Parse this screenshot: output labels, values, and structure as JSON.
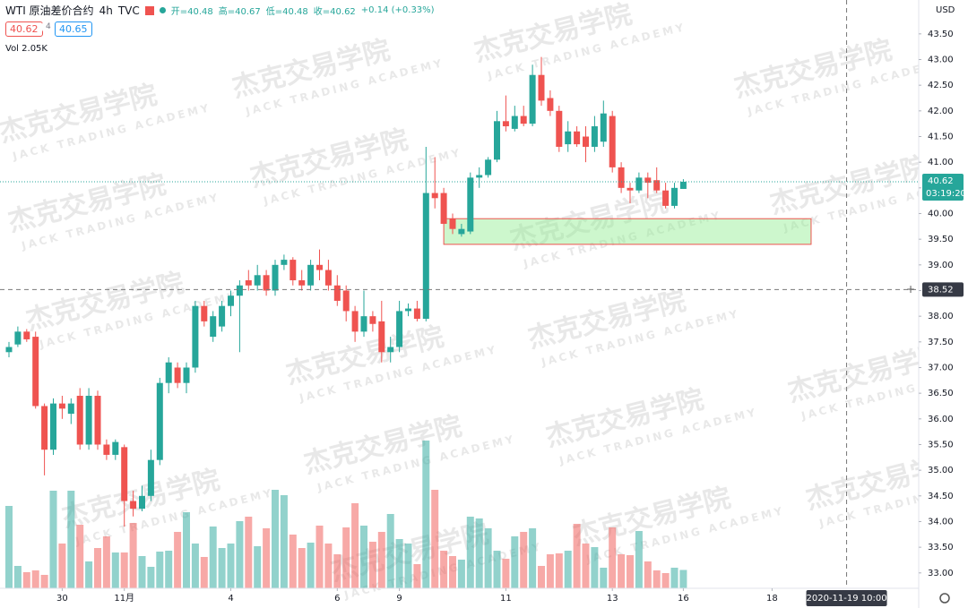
{
  "header": {
    "symbol": "WTI 原油差价合约",
    "interval": "4h",
    "source": "TVC",
    "ohlc": [
      "开=40.48",
      "高=40.67",
      "低=40.48",
      "收=40.62",
      "+0.14 (+0.33%)"
    ],
    "sell": "40.62",
    "spread": "4",
    "buy": "40.65",
    "vol_title": "Vol",
    "vol_value": "2.05K"
  },
  "watermark": {
    "cn": "杰克交易学院",
    "en": "JACK TRADING ACADEMY"
  },
  "chart_data": {
    "type": "candlestick",
    "currency": "USD",
    "open": [
      37.3,
      37.45,
      37.7,
      37.6,
      36.25,
      35.4,
      36.3,
      36.1,
      36.45,
      35.5,
      36.45,
      35.5,
      35.3,
      35.45,
      34.4,
      34.25,
      34.5,
      35.2,
      36.7,
      37.0,
      36.7,
      37.0,
      38.2,
      37.6,
      37.8,
      38.2,
      38.4,
      38.7,
      38.6,
      38.8,
      38.5,
      39.0,
      39.1,
      38.7,
      38.6,
      39.0,
      38.9,
      38.6,
      38.5,
      38.1,
      37.7,
      38.0,
      37.9,
      37.3,
      37.4,
      38.1,
      38.15,
      37.95,
      40.4,
      40.4,
      39.9,
      39.6,
      39.65,
      40.7,
      40.75,
      41.05,
      41.8,
      41.65,
      41.9,
      41.75,
      42.7,
      42.25,
      42.0,
      41.35,
      41.6,
      41.5,
      41.3,
      41.4,
      41.9,
      40.9,
      40.5,
      40.45,
      40.7,
      40.65,
      40.45,
      40.15,
      40.48
    ],
    "high": [
      37.5,
      37.8,
      37.75,
      37.7,
      36.3,
      36.4,
      36.45,
      36.4,
      36.6,
      36.6,
      36.55,
      35.6,
      35.6,
      35.5,
      34.6,
      34.7,
      35.4,
      36.8,
      37.2,
      37.1,
      37.1,
      38.3,
      38.3,
      38.1,
      38.3,
      38.5,
      38.7,
      38.9,
      39.0,
      38.9,
      39.1,
      39.2,
      39.15,
      38.9,
      39.1,
      39.3,
      39.1,
      38.8,
      38.6,
      38.2,
      38.5,
      38.1,
      38.3,
      37.6,
      38.3,
      38.25,
      38.3,
      41.3,
      41.1,
      40.5,
      40.0,
      39.8,
      40.8,
      40.9,
      41.1,
      42.0,
      42.3,
      42.1,
      42.1,
      42.9,
      43.05,
      42.4,
      42.1,
      41.8,
      41.7,
      41.7,
      41.9,
      42.2,
      42.0,
      41.0,
      40.6,
      40.8,
      40.8,
      40.9,
      40.6,
      40.6,
      40.67
    ],
    "low": [
      37.2,
      37.4,
      37.5,
      36.2,
      34.9,
      35.3,
      36.0,
      35.9,
      35.4,
      35.4,
      35.4,
      35.2,
      35.2,
      33.9,
      34.1,
      34.2,
      34.4,
      35.1,
      36.5,
      36.6,
      36.5,
      36.9,
      37.8,
      37.5,
      37.7,
      38.0,
      37.3,
      38.5,
      38.5,
      38.4,
      38.4,
      38.9,
      38.6,
      38.5,
      38.5,
      38.7,
      38.5,
      38.2,
      37.9,
      37.5,
      37.6,
      37.7,
      37.1,
      37.1,
      37.3,
      38.0,
      37.9,
      37.9,
      40.1,
      39.8,
      39.6,
      39.55,
      39.6,
      40.5,
      40.7,
      41.0,
      41.6,
      41.6,
      41.7,
      41.7,
      42.1,
      41.9,
      41.2,
      41.2,
      41.3,
      41.0,
      41.2,
      41.3,
      40.8,
      40.4,
      40.2,
      40.4,
      40.3,
      40.4,
      40.1,
      40.1,
      40.48
    ],
    "close": [
      37.4,
      37.7,
      37.55,
      36.25,
      35.4,
      36.3,
      36.2,
      36.3,
      35.5,
      36.45,
      35.5,
      35.3,
      35.55,
      34.4,
      34.25,
      34.5,
      35.2,
      36.7,
      37.1,
      36.7,
      37.0,
      38.2,
      37.9,
      38.0,
      38.2,
      38.4,
      38.6,
      38.6,
      38.8,
      38.5,
      39.0,
      39.1,
      38.7,
      38.6,
      39.0,
      38.9,
      38.6,
      38.3,
      38.1,
      37.7,
      38.0,
      37.85,
      37.3,
      37.4,
      38.1,
      38.15,
      37.95,
      40.4,
      40.3,
      39.8,
      39.7,
      39.7,
      40.7,
      40.75,
      41.05,
      41.8,
      41.7,
      41.9,
      41.75,
      42.7,
      42.2,
      42.0,
      41.3,
      41.6,
      41.35,
      41.3,
      41.7,
      41.95,
      40.9,
      40.5,
      40.45,
      40.7,
      40.6,
      40.45,
      40.15,
      40.5,
      40.62
    ],
    "volume": [
      9200,
      2500,
      1800,
      2000,
      1500,
      10900,
      5000,
      10900,
      7100,
      3000,
      4500,
      5800,
      4000,
      4000,
      7300,
      3600,
      2400,
      4100,
      4200,
      6300,
      8500,
      5000,
      3500,
      6900,
      4500,
      5000,
      7500,
      8000,
      4700,
      6700,
      11000,
      10400,
      6000,
      4500,
      5100,
      7000,
      5000,
      3800,
      6800,
      9500,
      7000,
      5200,
      6300,
      8300,
      5500,
      5000,
      2700,
      16500,
      11000,
      4200,
      3600,
      3200,
      8000,
      7800,
      6700,
      4200,
      3300,
      5800,
      6300,
      6700,
      2500,
      3800,
      3900,
      4200,
      7200,
      5000,
      4600,
      2300,
      6800,
      3800,
      3700,
      6400,
      3000,
      2000,
      1700,
      2300,
      2050
    ],
    "ylim": [
      32.7,
      44.16
    ],
    "vlim": [
      0,
      22000
    ],
    "yticks": [
      {
        "value": 33,
        "label": "33.00"
      },
      {
        "value": 33.5,
        "label": "33.50"
      },
      {
        "value": 34,
        "label": "34.00"
      },
      {
        "value": 34.5,
        "label": "34.50"
      },
      {
        "value": 35,
        "label": "35.00"
      },
      {
        "value": 35.5,
        "label": "35.50"
      },
      {
        "value": 36,
        "label": "36.00"
      },
      {
        "value": 36.5,
        "label": "36.50"
      },
      {
        "value": 37,
        "label": "37.00"
      },
      {
        "value": 37.5,
        "label": "37.50"
      },
      {
        "value": 38,
        "label": "38.00"
      },
      {
        "value": 38.5,
        "label": "38.50"
      },
      {
        "value": 39,
        "label": "39.00"
      },
      {
        "value": 39.5,
        "label": "39.50"
      },
      {
        "value": 40,
        "label": "40.00"
      },
      {
        "value": 40.5,
        "label": "40.50"
      },
      {
        "value": 41,
        "label": "41.00"
      },
      {
        "value": 41.5,
        "label": "41.50"
      },
      {
        "value": 42,
        "label": "42.00"
      },
      {
        "value": 42.5,
        "label": "42.50"
      },
      {
        "value": 43,
        "label": "43.00"
      },
      {
        "value": 43.5,
        "label": "43.50"
      }
    ],
    "xticks": [
      {
        "value": 6,
        "label": "30"
      },
      {
        "value": 13,
        "label": "11月"
      },
      {
        "value": 25,
        "label": "4"
      },
      {
        "value": 37,
        "label": "6"
      },
      {
        "value": 44,
        "label": "9"
      },
      {
        "value": 56,
        "label": "11"
      },
      {
        "value": 68,
        "label": "13"
      },
      {
        "value": 76,
        "label": "16"
      },
      {
        "value": 86,
        "label": "18"
      }
    ],
    "zone": {
      "ylim": [
        39.4,
        39.9
      ],
      "xlim": [
        49,
        90.4
      ]
    },
    "last": {
      "value": 40.62,
      "countdown": "03:19:20"
    },
    "crosshair": {
      "price": 38.52,
      "index": 94.4,
      "label": "2020-11-19 10:00"
    },
    "up_color": "#26a69a",
    "down_color": "#ef5350"
  }
}
